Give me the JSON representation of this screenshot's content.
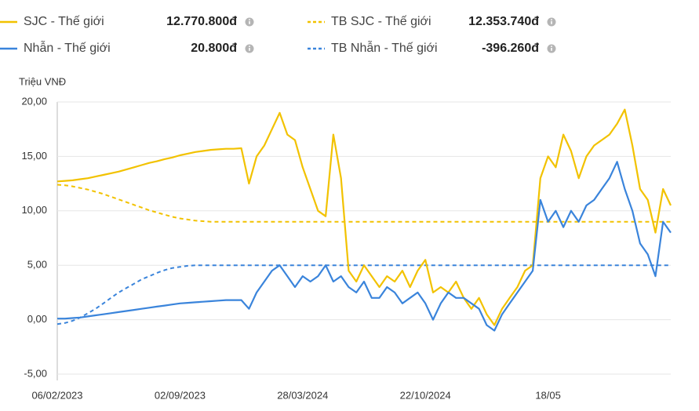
{
  "chart_data": {
    "type": "line",
    "y_axis_label": "Triệu VNĐ",
    "categories": [
      "06/02/2023",
      null,
      null,
      null,
      null,
      null,
      null,
      null,
      null,
      null,
      null,
      null,
      null,
      null,
      null,
      null,
      "02/09/2023",
      null,
      null,
      null,
      null,
      null,
      null,
      null,
      null,
      null,
      null,
      null,
      null,
      null,
      null,
      null,
      "28/03/2024",
      null,
      null,
      null,
      null,
      null,
      null,
      null,
      null,
      null,
      null,
      null,
      null,
      null,
      null,
      null,
      "22/10/2024",
      null,
      null,
      null,
      null,
      null,
      null,
      null,
      null,
      null,
      null,
      null,
      null,
      null,
      null,
      null,
      "18/05",
      null,
      null,
      null,
      null,
      null,
      null,
      null,
      null,
      null,
      null,
      null,
      null,
      null,
      null,
      null,
      null
    ],
    "ylim": [
      -5,
      20
    ],
    "yticks": [
      {
        "value": -5,
        "label": "-5,00"
      },
      {
        "value": 0,
        "label": "0,00"
      },
      {
        "value": 5,
        "label": "5,00"
      },
      {
        "value": 10,
        "label": "10,00"
      },
      {
        "value": 15,
        "label": "15,00"
      },
      {
        "value": 20,
        "label": "20,00"
      }
    ],
    "grid": true,
    "series": [
      {
        "name": "SJC - Thế giới",
        "legend_value": "12.770.800đ",
        "color": "#f2c200",
        "dashed": false,
        "values": [
          12.7,
          12.75,
          12.8,
          12.9,
          13.0,
          13.15,
          13.3,
          13.45,
          13.6,
          13.8,
          14.0,
          14.2,
          14.4,
          14.55,
          14.75,
          14.9,
          15.1,
          15.25,
          15.4,
          15.5,
          15.6,
          15.65,
          15.7,
          15.7,
          15.75,
          12.5,
          15,
          16,
          17.5,
          19,
          17,
          16.5,
          14,
          12,
          10,
          9.5,
          17,
          13,
          4.5,
          3.5,
          5,
          4,
          3,
          4,
          3.5,
          4.5,
          3,
          4.5,
          5.5,
          2.5,
          3,
          2.5,
          3.5,
          2,
          1,
          2,
          0.5,
          -0.5,
          1,
          2,
          3,
          4.5,
          5,
          13,
          15,
          14,
          17,
          15.5,
          13,
          15,
          16,
          16.5,
          17,
          18,
          19.3,
          16,
          12,
          11,
          8,
          12,
          10.5
        ]
      },
      {
        "name": "Nhẫn - Thế giới",
        "legend_value": "20.800đ",
        "color": "#3a84db",
        "dashed": false,
        "values": [
          0.1,
          0.1,
          0.15,
          0.2,
          0.3,
          0.4,
          0.5,
          0.6,
          0.7,
          0.8,
          0.9,
          1.0,
          1.1,
          1.2,
          1.3,
          1.4,
          1.5,
          1.55,
          1.6,
          1.65,
          1.7,
          1.75,
          1.8,
          1.8,
          1.8,
          1,
          2.5,
          3.5,
          4.5,
          5,
          4,
          3,
          4,
          3.5,
          4,
          5,
          3.5,
          4,
          3,
          2.5,
          3.5,
          2,
          2,
          3,
          2.5,
          1.5,
          2,
          2.5,
          1.5,
          0,
          1.5,
          2.5,
          2,
          2,
          1.5,
          1,
          -0.5,
          -1,
          0.5,
          1.5,
          2.5,
          3.5,
          4.5,
          11,
          9,
          10,
          8.5,
          10,
          9,
          10.5,
          11,
          12,
          13,
          14.5,
          12,
          10,
          7,
          6,
          4,
          9,
          8
        ]
      },
      {
        "name": "TB SJC - Thế giới",
        "legend_value": "12.353.740đ",
        "color": "#f2c200",
        "dashed": true,
        "values": [
          12.4,
          12.35,
          12.25,
          12.1,
          11.95,
          11.75,
          11.55,
          11.3,
          11.05,
          10.8,
          10.55,
          10.3,
          10.05,
          9.85,
          9.65,
          9.45,
          9.3,
          9.2,
          9.1,
          9.05,
          9,
          9,
          9,
          9,
          9,
          9,
          9,
          9,
          9,
          9,
          9,
          9,
          9,
          9,
          9,
          9,
          9,
          9,
          9,
          9,
          9,
          9,
          9,
          9,
          9,
          9,
          9,
          9,
          9,
          9,
          9,
          9,
          9,
          9,
          9,
          9,
          9,
          9,
          9,
          9,
          9,
          9,
          9,
          9,
          9,
          9,
          9,
          9,
          9,
          9,
          9,
          9,
          9,
          9,
          9,
          9,
          9,
          9,
          9,
          9,
          9
        ]
      },
      {
        "name": "TB Nhẫn - Thế giới",
        "legend_value": "-396.260đ",
        "color": "#3a84db",
        "dashed": true,
        "values": [
          -0.4,
          -0.3,
          -0.1,
          0.2,
          0.6,
          1.0,
          1.5,
          2.0,
          2.5,
          2.9,
          3.3,
          3.7,
          4.0,
          4.3,
          4.55,
          4.75,
          4.85,
          4.95,
          5.0,
          5,
          5,
          5,
          5,
          5,
          5,
          5,
          5,
          5,
          5,
          5,
          5,
          5,
          5,
          5,
          5,
          5,
          5,
          5,
          5,
          5,
          5,
          5,
          5,
          5,
          5,
          5,
          5,
          5,
          5,
          5,
          5,
          5,
          5,
          5,
          5,
          5,
          5,
          5,
          5,
          5,
          5,
          5,
          5,
          5,
          5,
          5,
          5,
          5,
          5,
          5,
          5,
          5,
          5,
          5,
          5,
          5,
          5,
          5,
          5,
          5,
          5
        ]
      }
    ]
  }
}
